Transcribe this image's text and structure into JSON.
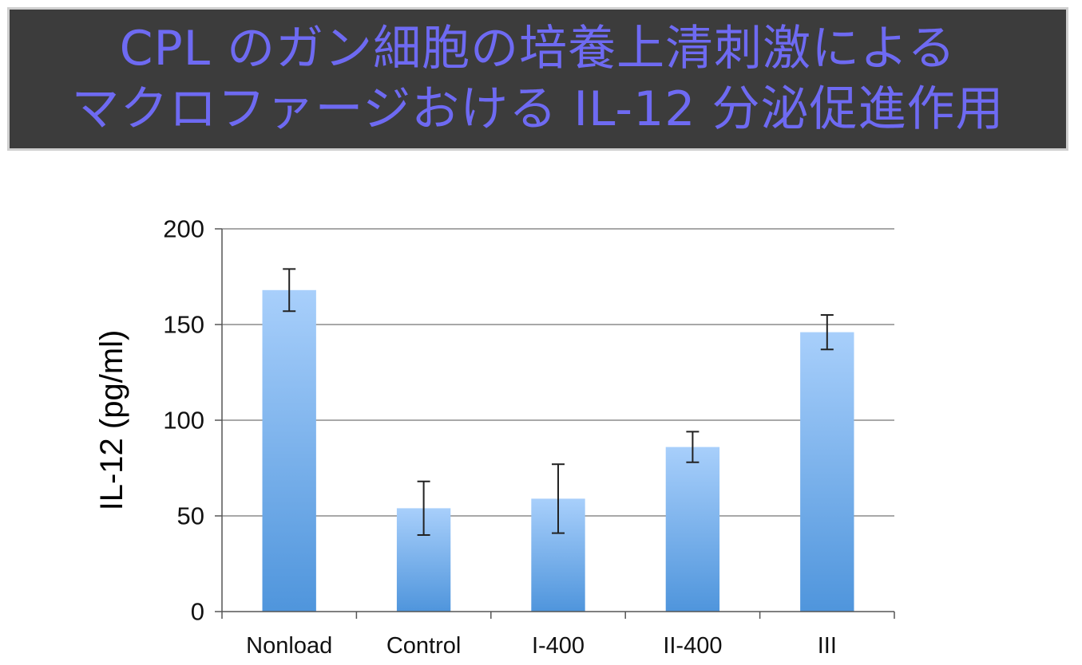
{
  "chart_data": {
    "type": "bar",
    "title_lines": [
      "CPL のガン細胞の培養上清刺激による",
      "マクロファージおける IL-12  分泌促進作用"
    ],
    "xlabel": "",
    "ylabel": "IL-12 (pg/ml)",
    "categories": [
      "Nonload",
      "Control",
      "I-400",
      "II-400",
      "III"
    ],
    "values": [
      168,
      54,
      59,
      86,
      146
    ],
    "error": [
      11,
      14,
      18,
      8,
      9
    ],
    "ylim": [
      0,
      200
    ],
    "yticks": [
      "0",
      "50",
      "100",
      "150",
      "200"
    ],
    "grid": true,
    "legend": "none",
    "colors": {
      "bar_top": "#a8cffb",
      "bar_bottom": "#4f95dc",
      "title_text": "#6e6af2",
      "title_bg": "#3c3c3c",
      "gridline": "#8c8c8c",
      "error_bar": "#222222"
    }
  }
}
